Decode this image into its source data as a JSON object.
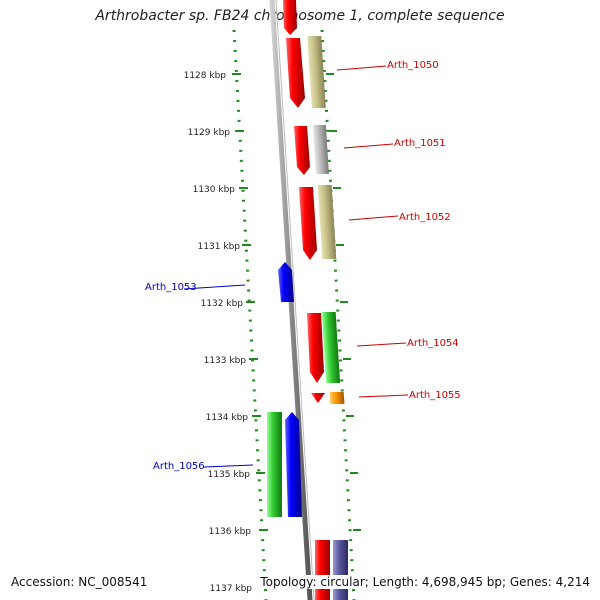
{
  "title": "Arthrobacter sp. FB24 chromosome 1, complete sequence",
  "accession_label": "Accession: NC_008541",
  "topology_label": "Topology: circular; Length: 4,698,945 bp; Genes: 4,214",
  "kbp_ticks": [
    "1128 kbp",
    "1129 kbp",
    "1130 kbp",
    "1131 kbp",
    "1132 kbp",
    "1133 kbp",
    "1134 kbp",
    "1135 kbp",
    "1136 kbp",
    "1137 kbp"
  ],
  "gene_labels": [
    {
      "name": "Arth_1050",
      "side": "right",
      "color": "#cc0000"
    },
    {
      "name": "Arth_1051",
      "side": "right",
      "color": "#cc0000"
    },
    {
      "name": "Arth_1052",
      "side": "right",
      "color": "#cc0000"
    },
    {
      "name": "Arth_1053",
      "side": "left",
      "color": "#0000cc"
    },
    {
      "name": "Arth_1054",
      "side": "right",
      "color": "#cc0000"
    },
    {
      "name": "Arth_1055",
      "side": "right",
      "color": "#cc0000"
    },
    {
      "name": "Arth_1056",
      "side": "left",
      "color": "#0000cc"
    }
  ],
  "colors": {
    "forward_gene": "#ee0000",
    "reverse_gene": "#0000ee",
    "backbone": "#888888",
    "ruler_dots": "#228822",
    "khaki": "#c8c28a",
    "gray": "#b8b8b8",
    "green": "#33cc33",
    "orange": "#ff9900",
    "slate": "#5a5aa0"
  }
}
